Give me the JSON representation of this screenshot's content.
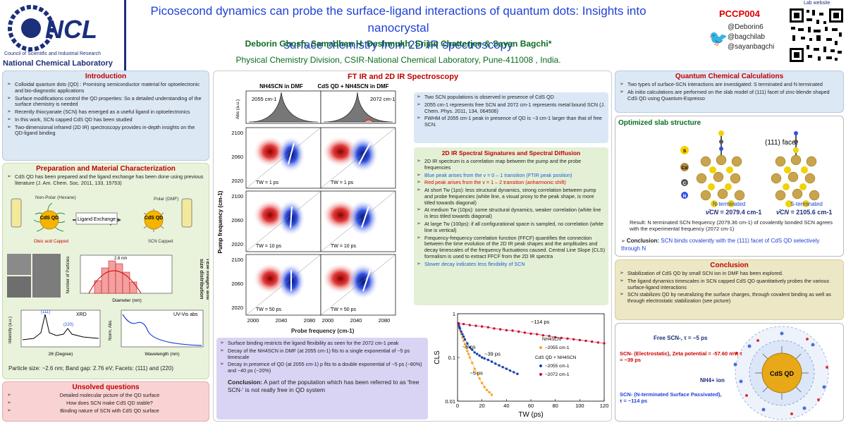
{
  "header": {
    "org_full": "Council of Scientific and Industrial Research",
    "org_lab": "National Chemical Laboratory",
    "logo_text": "NCL",
    "title_line1": "Picosecond dynamics can probe the surface-ligand interactions of quantum dots: Insights into nanocrystal",
    "title_line2": "surface chemistry from 2D IR spectroscopy",
    "authors": "Deborin Ghosh,  Samadhan H. Deshmukh,  Srijan Chatterjee & Sayan Bagchi*",
    "affiliation": "Physical Chemistry Division, CSIR-National Chemical Laboratory, Pune-411008 , India.",
    "poster_id": "PCCP004",
    "twitter": [
      "@Deborin6",
      "@bagchilab",
      "@sayanbagchi"
    ],
    "lab_website": "Lab website"
  },
  "intro": {
    "title": "Introduction",
    "items": [
      "Colloidal quantum dots (QD) : Promising semiconductor material for optoelectronic and bio-diagnostic applications",
      "Surface modifications control the QD properties: So a detailed understanding of the surface chemistry is needed",
      "Recently thiocyanate (SCN) has emerged as a useful ligand in optoelectronics",
      "In this work, SCN capped CdS QD has been studied",
      "Two-dimensional infrared (2D IR) spectroscopy provides in-depth insights on the QD-ligand binding"
    ]
  },
  "prep": {
    "title": "Preparation and Material Characterization",
    "text": "CdS QD has been prepared and the ligand exchange has been done using previous literature (J. Am. Chem. Soc. 2011, 133, 15753)",
    "nonpolar": "Non-Polar (Hexane)",
    "polar": "Polar (DMF)",
    "qd_label": "CdS QD",
    "oleic": "Oleic acid Capped",
    "scn_capped": "SCN Capped",
    "ligand_exchange": "Ligand Exchange",
    "tem_label": "TEM Images and size distribution",
    "hist_label": "2.6 nm",
    "hist_ylabel": "Number of Particles",
    "hist_xlabel": "Diameter (nm)",
    "xrd_title": "XRD",
    "xrd_peaks": [
      "(111)",
      "(220)"
    ],
    "xrd_xlabel": "2θ (Degree)",
    "xrd_ylabel": "Intensity (a.u.)",
    "uv_title": "UV-Vis abs",
    "uv_xlabel": "Wavelength (nm)",
    "uv_ylabel": "Norm. Abs.",
    "summary": "Particle size: ~2.6 nm; Band gap: 2.76 eV; Facets: (111) and (220)"
  },
  "unsolved": {
    "title": "Unsolved questions",
    "items": [
      "Detailed molecular picture of the QD surface",
      "How does SCN make CdS QD stable?",
      "Binding nature of SCN with CdS QD surface"
    ]
  },
  "ftir": {
    "title": "FT IR and 2D IR Spectroscopy",
    "col1": "NH4SCN in DMF",
    "col2": "CdS QD + NH4SCN in DMF",
    "peak1": "2055 cm-1",
    "peak2": "2072 cm-1",
    "abs_label": "Abs (a.u.)",
    "ylabel": "Pump frequency (cm-1)",
    "xlabel": "Probe frequency (cm-1)",
    "tw": [
      "TW = 1 ps",
      "TW = 10 ps",
      "TW = 50 ps"
    ],
    "yticks": [
      "2100",
      "2060",
      "2020"
    ],
    "xticks": [
      "2000",
      "2040",
      "2080"
    ],
    "ftir_points": [
      "Two SCN populations is observed in presence of CdS QD",
      "2055 cm-1 represents free SCN and 2072 cm-1 represents metal bound SCN (J. Chem. Phys. 2011, 134, 064506)",
      "FWHM of 2055 cm-1 peak in presence of QD is ~3 cm-1 larger than that of free SCN."
    ]
  },
  "spectral": {
    "title": "2D IR Spectral Signatures and Spectral Diffusion",
    "items": [
      "2D IR spectrum is a correlation map between the pump and the probe frequencies",
      "Blue peak arises from the v = 0 – 1 transition (FTIR peak position)",
      "Red peak arises from the v = 1 – 2 transition (anharmonic shift)",
      "At short Tw (1ps): less structural dynamics, strong correlation between pump and probe frequencies (white line, a visual proxy to the peak shape, is more titled towards diagonal)",
      "At medium Tw (10ps): some structural dynamics, weaker correlation (white line is less titled towards diagonal)",
      "At large Tw (100ps): if all configurational space is sampled, no correlation (white line is vertical)",
      "Frequency-frequency correlation function (FFCF) quantifies the connection between the time evolution of the 2D IR peak shapes and the amplitudes and decay timescales of the frequency fluctuations caused. Central Line Slope (CLS) formalism is used to extract FFCF from the 2D IR spectra",
      "Slower decay indicates less flexibility of SCN"
    ]
  },
  "results": {
    "items": [
      "Surface binding restricts the ligand flexibility as seen for the 2072 cm-1 peak",
      "Decay of the NH4SCN in DMF (at 2055 cm-1) fits to a single exponential of ~5 ps timescale",
      "Decay in presence of QD (at 2055 cm-1) p fits to a double exponential of ~5 ps (~80%) and ~40 ps (~20%)"
    ],
    "conclusion_label": "Conclusion:",
    "conclusion": "A part of the population which has been referred to as 'free SCN-' is not really free in QD system"
  },
  "chart_data": {
    "type": "scatter",
    "ylabel": "CLS",
    "xlabel": "TW (ps)",
    "log_y": true,
    "xlim": [
      0,
      120
    ],
    "ylim": [
      0.01,
      1
    ],
    "xticks": [
      0,
      20,
      40,
      60,
      80,
      100,
      120
    ],
    "yticks": [
      "0.01",
      "0.1",
      "1"
    ],
    "legend": {
      "group1": "NH4SCN",
      "group2": "CdS QD + NH4SCN",
      "entries": [
        "~2055 cm-1",
        "~2055 cm-1",
        "~2072 cm-1"
      ]
    },
    "annotations": [
      "~114 ps",
      "~5 ps",
      "~39 ps",
      "~5 ps"
    ],
    "series": [
      {
        "name": "NH4SCN ~2055 cm-1",
        "color": "#f5a623",
        "x": [
          0.5,
          1,
          1.5,
          2,
          3,
          4,
          5,
          6,
          7,
          8,
          9,
          10,
          12,
          14,
          16,
          18,
          20,
          22,
          24,
          26,
          28
        ],
        "y": [
          0.58,
          0.52,
          0.47,
          0.42,
          0.35,
          0.29,
          0.24,
          0.2,
          0.17,
          0.14,
          0.12,
          0.1,
          0.075,
          0.055,
          0.043,
          0.033,
          0.026,
          0.021,
          0.018,
          0.016,
          0.014
        ]
      },
      {
        "name": "CdS QD + NH4SCN ~2055 cm-1",
        "color": "#1a3fb0",
        "x": [
          0.5,
          1,
          1.5,
          2,
          3,
          4,
          5,
          6,
          8,
          10,
          12,
          14,
          16,
          18,
          20,
          22,
          25,
          28,
          31,
          34,
          37,
          40,
          43,
          46,
          49
        ],
        "y": [
          0.6,
          0.55,
          0.5,
          0.46,
          0.39,
          0.34,
          0.3,
          0.26,
          0.21,
          0.17,
          0.15,
          0.13,
          0.12,
          0.11,
          0.1,
          0.095,
          0.088,
          0.08,
          0.072,
          0.066,
          0.06,
          0.055,
          0.05,
          0.046,
          0.042
        ]
      },
      {
        "name": "CdS QD + NH4SCN ~2072 cm-1",
        "color": "#c8102e",
        "x": [
          1,
          5,
          10,
          15,
          20,
          25,
          30,
          35,
          40,
          45,
          50,
          55,
          60,
          65,
          70,
          75,
          80,
          85,
          90,
          95,
          100,
          105,
          110,
          115,
          120
        ],
        "y": [
          0.6,
          0.58,
          0.55,
          0.53,
          0.51,
          0.49,
          0.46,
          0.44,
          0.42,
          0.41,
          0.39,
          0.37,
          0.35,
          0.34,
          0.32,
          0.31,
          0.29,
          0.28,
          0.27,
          0.26,
          0.25,
          0.24,
          0.23,
          0.22,
          0.21
        ]
      }
    ]
  },
  "quantum": {
    "title": "Quantum Chemical Calculations",
    "items": [
      "Two types of surface-SCN interactions are investigated: S terminated and N terminated",
      "Ab initio calculations are performed on the slab model of (111) facet of zinc-blende shaped CdS QD using Quantum-Espresso"
    ]
  },
  "slab": {
    "title": "Optimized slab structure",
    "facet": "(111) facet",
    "atoms": [
      "S",
      "Cd",
      "C",
      "N"
    ],
    "n_term": "N-terminated",
    "s_term": "S-terminated",
    "n_freq": "2079.4 cm-1",
    "s_freq": "2105.6 cm-1",
    "nu_label": "ν̄CN",
    "result": "Result: N terminated SCN frequency (2079.36 cm-1) of covalently bonded SCN agrees with the experimental frequency (2072 cm-1)",
    "conclusion_label": "Conclusion:",
    "conclusion": "SCN binds covalently with the (111) facet of CdS QD selectively through N"
  },
  "conclusion": {
    "title": "Conclusion",
    "items": [
      "Stabilization of CdS QD by small SCN ion in DMF has been explored.",
      "The ligand dynamics timescales in SCN capped CdS QD quantitatively probes the various surface-ligand interactions",
      "SCN stabilizes QD by neutralizing the surface charges, through covalent binding as well as through electrostatic stabilization (see picture)"
    ]
  },
  "scheme": {
    "free": "Free SCN-,  τ = ~5 ps",
    "electrostatic": "SCN- (Electrostatic), Zeta potential = -57.60 mV, τ = ~39 ps",
    "nh4": "NH4+ ion",
    "covalent": "SCN- (N-terminated Surface Passivated), τ = ~114 ps",
    "qd": "CdS QD"
  }
}
